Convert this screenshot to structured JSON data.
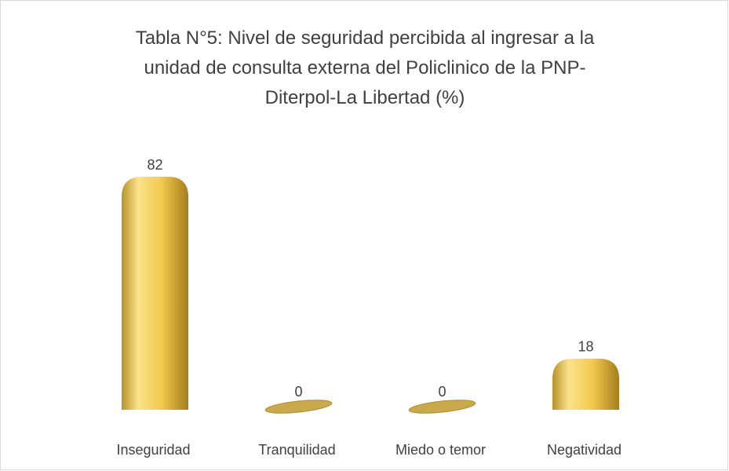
{
  "chart_data": {
    "type": "bar",
    "title": "Tabla N°5: Nivel de seguridad percibida al ingresar a la unidad de consulta externa del Policlinico de la PNP-Diterpol-La Libertad (%)",
    "categories": [
      "Inseguridad",
      "Tranquilidad",
      "Miedo o temor",
      "Negatividad"
    ],
    "values": [
      82,
      0,
      0,
      18
    ],
    "color": "#f2c94c"
  }
}
